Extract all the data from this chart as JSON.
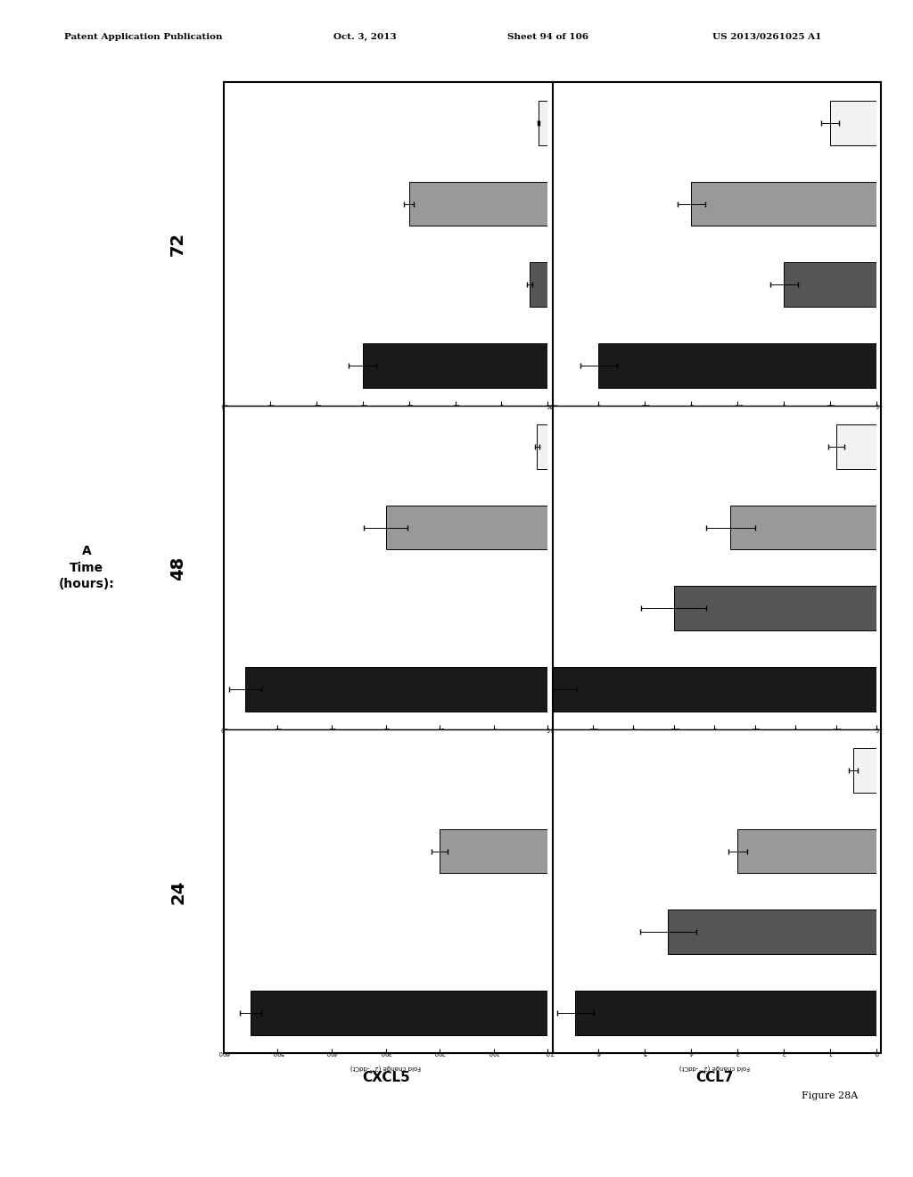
{
  "header_left": "Patent Application Publication",
  "header_center": "Oct. 3, 2013",
  "header_sheet": "Sheet 94 of 106",
  "header_right": "US 2013/0261025 A1",
  "figure_label": "Figure 28A",
  "gene_labels": [
    "CXCL5",
    "CCL7"
  ],
  "time_points": [
    "72",
    "48",
    "24"
  ],
  "ylabel_text": "Fold change (2^-ddCt)",
  "bar_colors": [
    "#1a1a1a",
    "#555555",
    "#999999",
    "#f2f2f2"
  ],
  "bar_edgecolor": "#000000",
  "panels": {
    "CXCL5_72": {
      "values": [
        20,
        2,
        15,
        1
      ],
      "errors": [
        1.5,
        0.3,
        0.5,
        0.1
      ],
      "xlim": 35,
      "xticks": [
        0,
        5,
        10,
        15,
        20,
        25,
        30,
        35
      ]
    },
    "CXCL5_48": {
      "values": [
        28,
        0,
        15,
        1
      ],
      "errors": [
        1.5,
        0,
        2,
        0.2
      ],
      "xlim": 30,
      "xticks": [
        0,
        5,
        10,
        15,
        20,
        25,
        30
      ]
    },
    "CXCL5_24": {
      "values": [
        550,
        0,
        200,
        0
      ],
      "errors": [
        20,
        0,
        15,
        0
      ],
      "xlim": 600,
      "xticks": [
        0,
        100,
        200,
        300,
        400,
        500,
        600
      ]
    },
    "CCL7_72": {
      "values": [
        3.0,
        1.0,
        2.0,
        0.5
      ],
      "errors": [
        0.2,
        0.15,
        0.15,
        0.1
      ],
      "xlim": 3.5,
      "xticks": [
        0,
        0.5,
        1.0,
        1.5,
        2.0,
        2.5,
        3.0,
        3.5
      ]
    },
    "CCL7_48": {
      "values": [
        4.0,
        2.5,
        1.8,
        0.5
      ],
      "errors": [
        0.3,
        0.4,
        0.3,
        0.1
      ],
      "xlim": 4,
      "xticks": [
        0,
        0.5,
        1.0,
        1.5,
        2.0,
        2.5,
        3.0,
        3.5,
        4.0
      ]
    },
    "CCL7_24": {
      "values": [
        6.5,
        4.5,
        3.0,
        0.5
      ],
      "errors": [
        0.4,
        0.6,
        0.2,
        0.1
      ],
      "xlim": 7,
      "xticks": [
        0,
        1,
        2,
        3,
        4,
        5,
        6,
        7
      ]
    }
  }
}
